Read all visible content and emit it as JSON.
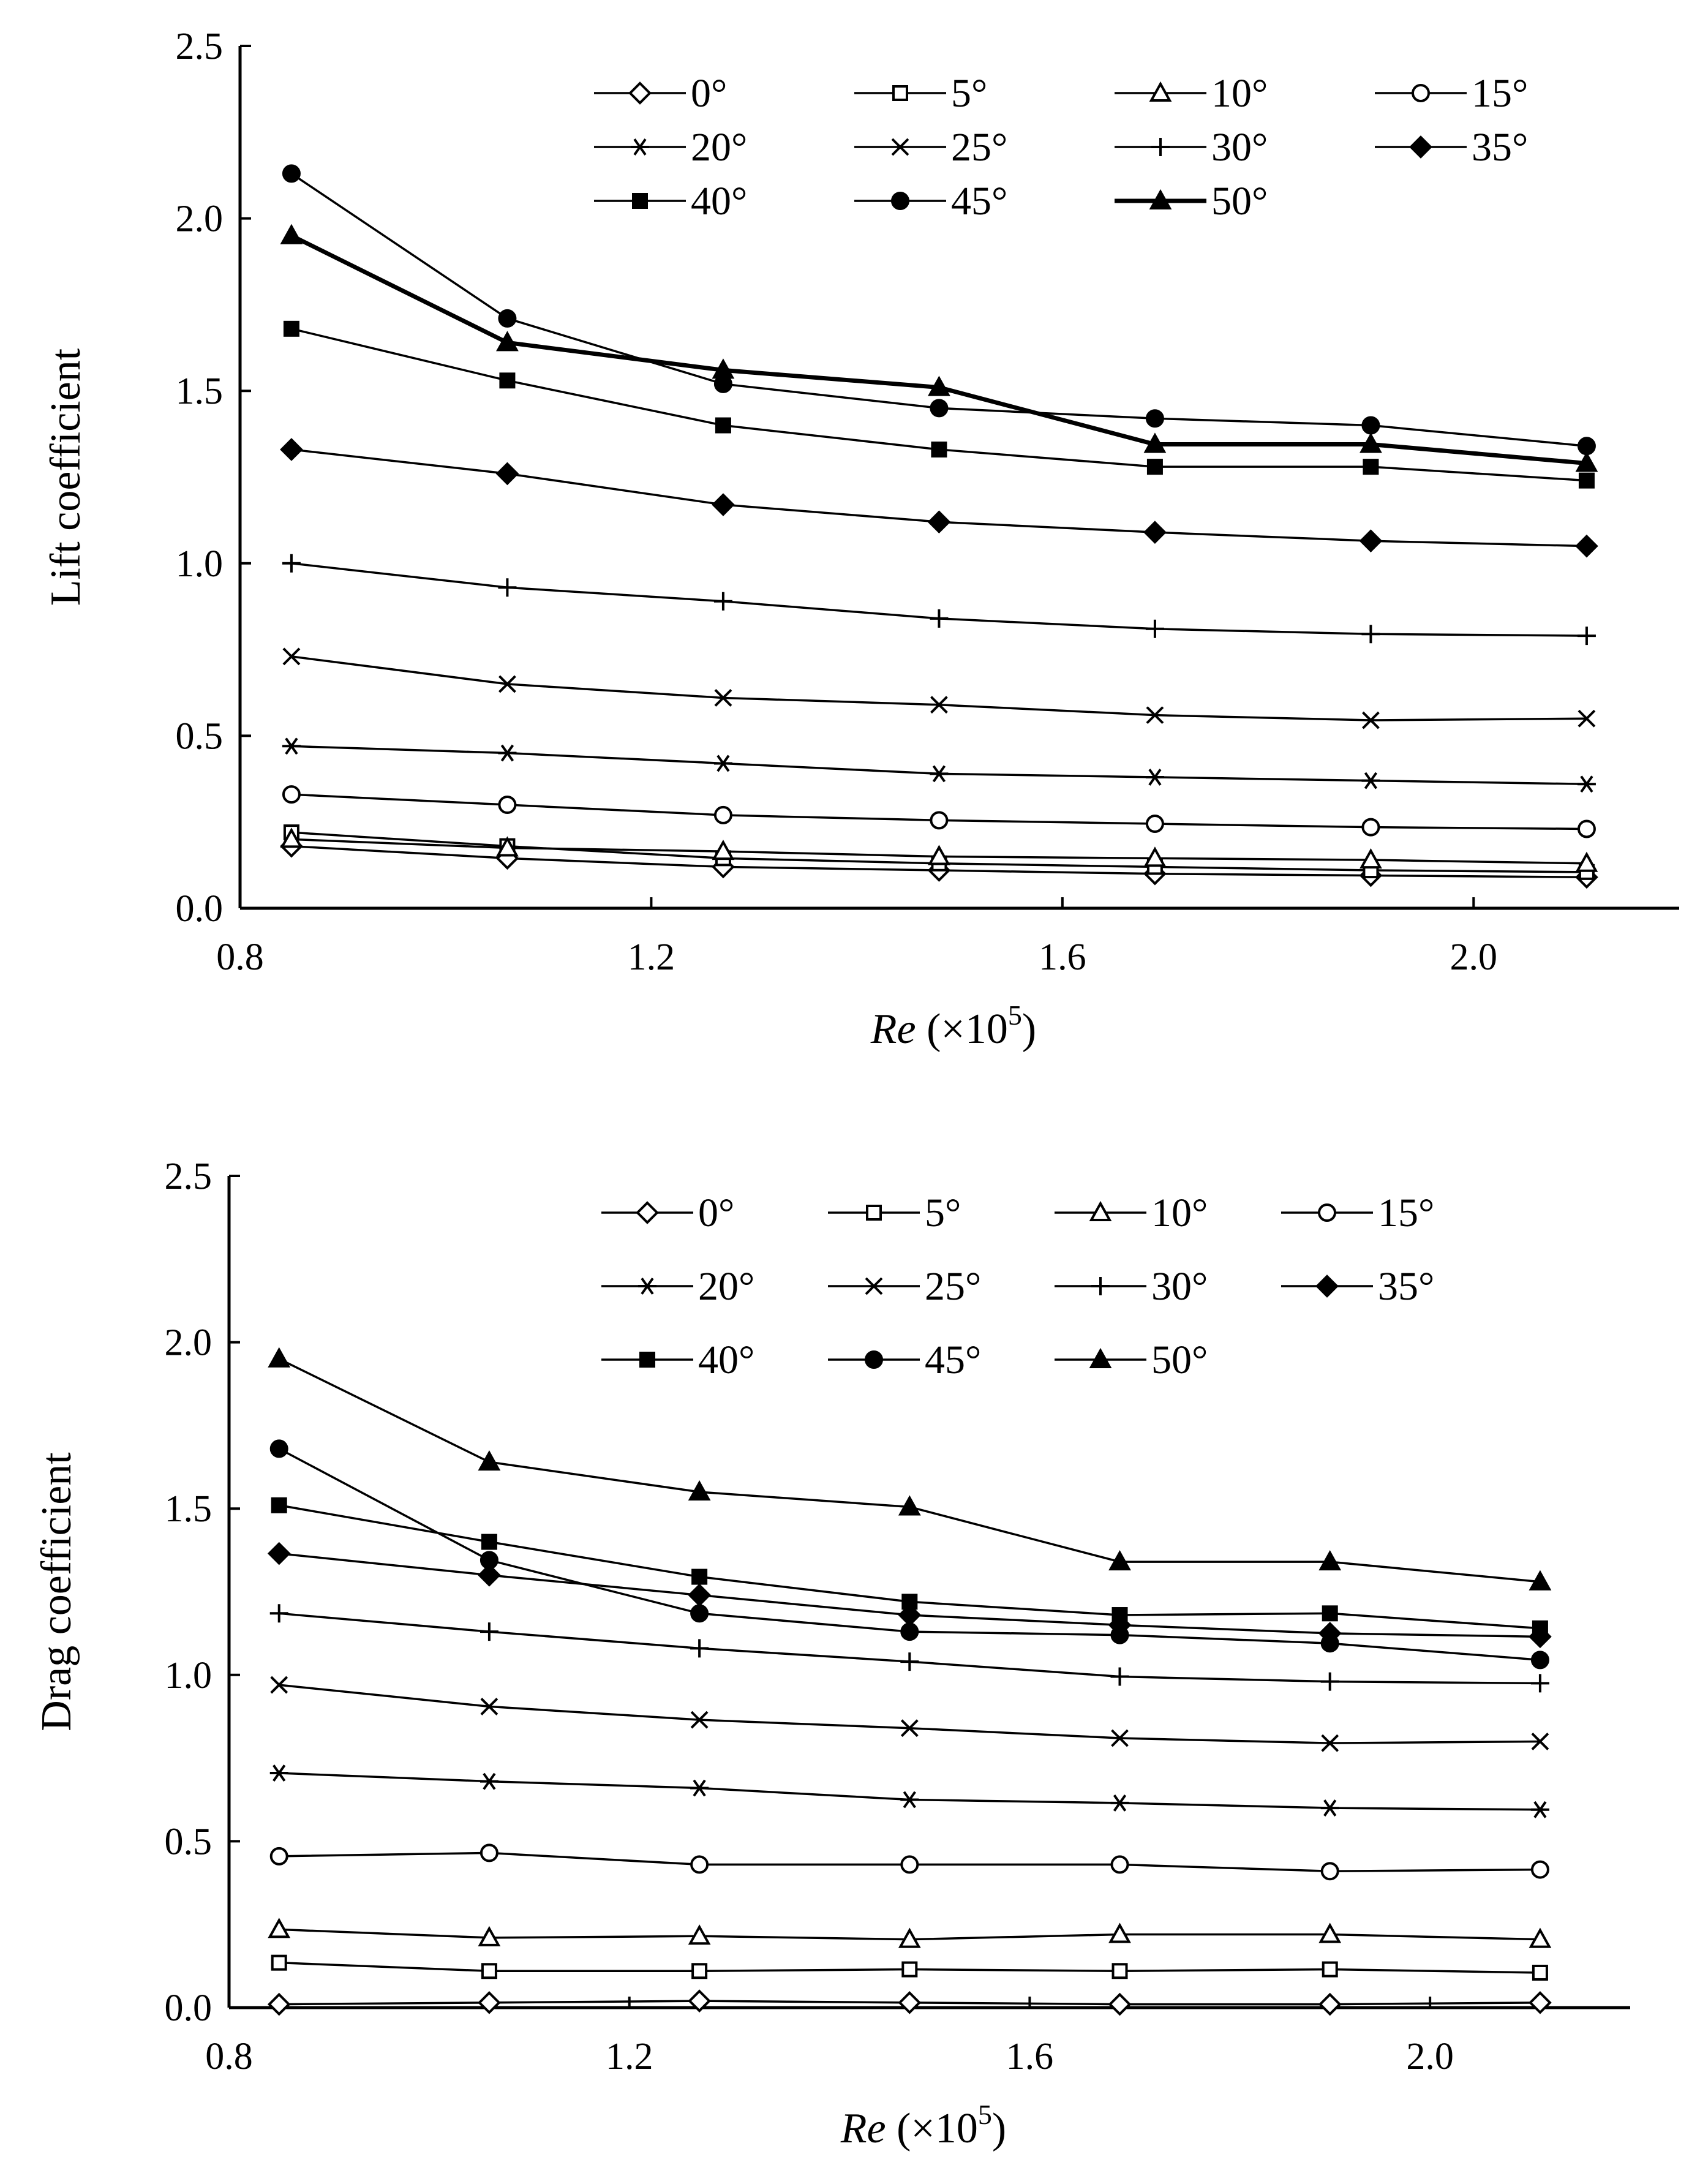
{
  "chart_data": [
    {
      "type": "line",
      "ylabel": "Lift coefficient",
      "xlabel_italic": "Re",
      "xlabel_rest": " (×10",
      "xlabel_sup": "5",
      "xlabel_close": ")",
      "xlim": [
        0.8,
        2.2
      ],
      "ylim": [
        0.0,
        2.5
      ],
      "xticks": [
        "0.8",
        "1.2",
        "1.6",
        "2.0"
      ],
      "yticks": [
        "0.0",
        "0.5",
        "1.0",
        "1.5",
        "2.0",
        "2.5"
      ],
      "legend_position": "top-right",
      "x": [
        0.85,
        1.06,
        1.27,
        1.48,
        1.69,
        1.9,
        2.11
      ],
      "series": [
        {
          "name": "0°",
          "marker": "diamond-open",
          "values": [
            0.18,
            0.145,
            0.12,
            0.11,
            0.1,
            0.095,
            0.09
          ]
        },
        {
          "name": "5°",
          "marker": "square-open",
          "values": [
            0.22,
            0.18,
            0.145,
            0.13,
            0.12,
            0.11,
            0.105
          ]
        },
        {
          "name": "10°",
          "marker": "triangle-open",
          "values": [
            0.2,
            0.175,
            0.165,
            0.15,
            0.145,
            0.14,
            0.13
          ]
        },
        {
          "name": "15°",
          "marker": "circle-open",
          "values": [
            0.33,
            0.3,
            0.27,
            0.255,
            0.245,
            0.235,
            0.23
          ]
        },
        {
          "name": "20°",
          "marker": "asterisk",
          "values": [
            0.47,
            0.45,
            0.42,
            0.39,
            0.38,
            0.37,
            0.36
          ]
        },
        {
          "name": "25°",
          "marker": "cross",
          "values": [
            0.73,
            0.65,
            0.61,
            0.59,
            0.56,
            0.545,
            0.55
          ]
        },
        {
          "name": "30°",
          "marker": "plus",
          "values": [
            1.0,
            0.93,
            0.89,
            0.84,
            0.81,
            0.795,
            0.79
          ]
        },
        {
          "name": "35°",
          "marker": "diamond-filled",
          "values": [
            1.33,
            1.26,
            1.17,
            1.12,
            1.09,
            1.065,
            1.05
          ]
        },
        {
          "name": "40°",
          "marker": "square-filled",
          "values": [
            1.68,
            1.53,
            1.4,
            1.33,
            1.28,
            1.28,
            1.24
          ]
        },
        {
          "name": "45°",
          "marker": "circle-filled",
          "values": [
            2.13,
            1.71,
            1.52,
            1.45,
            1.42,
            1.4,
            1.34
          ]
        },
        {
          "name": "50°",
          "marker": "triangle-filled",
          "thick": true,
          "values": [
            1.95,
            1.64,
            1.56,
            1.51,
            1.345,
            1.345,
            1.29
          ]
        }
      ]
    },
    {
      "type": "line",
      "ylabel": "Drag coefficient",
      "xlabel_italic": "Re",
      "xlabel_rest": " (×10",
      "xlabel_sup": "5",
      "xlabel_close": ")",
      "xlim": [
        0.8,
        2.2
      ],
      "ylim": [
        0.0,
        2.5
      ],
      "xticks": [
        "0.8",
        "1.2",
        "1.6",
        "2.0"
      ],
      "yticks": [
        "0.0",
        "0.5",
        "1.0",
        "1.5",
        "2.0",
        "2.5"
      ],
      "legend_position": "top-right",
      "x": [
        0.85,
        1.06,
        1.27,
        1.48,
        1.69,
        1.9,
        2.11
      ],
      "series": [
        {
          "name": "0°",
          "marker": "diamond-open",
          "values": [
            0.01,
            0.015,
            0.02,
            0.015,
            0.01,
            0.01,
            0.015
          ]
        },
        {
          "name": "5°",
          "marker": "square-open",
          "values": [
            0.135,
            0.11,
            0.11,
            0.115,
            0.11,
            0.115,
            0.105
          ]
        },
        {
          "name": "10°",
          "marker": "triangle-open",
          "values": [
            0.235,
            0.21,
            0.215,
            0.205,
            0.22,
            0.22,
            0.205
          ]
        },
        {
          "name": "15°",
          "marker": "circle-open",
          "values": [
            0.455,
            0.465,
            0.43,
            0.43,
            0.43,
            0.41,
            0.415
          ]
        },
        {
          "name": "20°",
          "marker": "asterisk",
          "values": [
            0.705,
            0.68,
            0.66,
            0.625,
            0.615,
            0.6,
            0.595
          ]
        },
        {
          "name": "25°",
          "marker": "cross",
          "values": [
            0.97,
            0.905,
            0.865,
            0.84,
            0.81,
            0.795,
            0.8
          ]
        },
        {
          "name": "30°",
          "marker": "plus",
          "values": [
            1.185,
            1.13,
            1.08,
            1.04,
            0.995,
            0.98,
            0.975
          ]
        },
        {
          "name": "35°",
          "marker": "diamond-filled",
          "values": [
            1.365,
            1.3,
            1.24,
            1.18,
            1.15,
            1.125,
            1.115
          ]
        },
        {
          "name": "40°",
          "marker": "square-filled",
          "values": [
            1.51,
            1.4,
            1.295,
            1.22,
            1.18,
            1.185,
            1.14
          ]
        },
        {
          "name": "45°",
          "marker": "circle-filled",
          "values": [
            1.68,
            1.345,
            1.185,
            1.13,
            1.12,
            1.095,
            1.045
          ]
        },
        {
          "name": "50°",
          "marker": "triangle-filled",
          "values": [
            1.95,
            1.64,
            1.55,
            1.505,
            1.34,
            1.34,
            1.28
          ]
        }
      ]
    }
  ]
}
